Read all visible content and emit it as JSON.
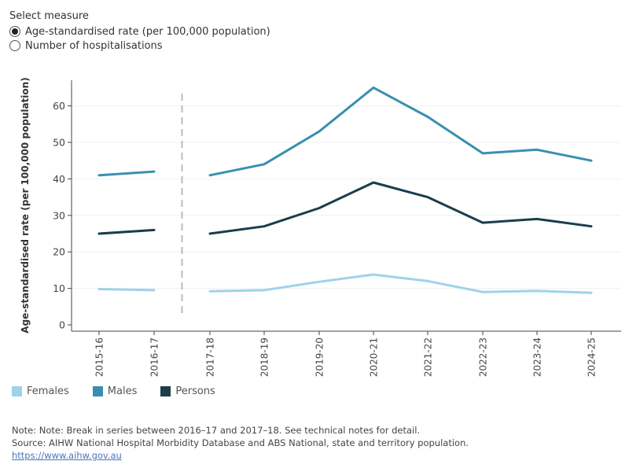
{
  "measure_selector": {
    "title": "Select measure",
    "options": [
      {
        "label": "Age-standardised rate (per 100,000 population)",
        "selected": true
      },
      {
        "label": "Number of hospitalisations",
        "selected": false
      }
    ]
  },
  "chart_data": {
    "type": "line",
    "title": "",
    "xlabel": "",
    "ylabel": "Age-standardised rate (per 100,000 population)",
    "categories": [
      "2015-16",
      "2016-17",
      "2017-18",
      "2018-19",
      "2019-20",
      "2020-21",
      "2021-22",
      "2022-23",
      "2023-24",
      "2024-25"
    ],
    "ylim": [
      0,
      65
    ],
    "yticks": [
      0,
      10,
      20,
      30,
      40,
      50,
      60
    ],
    "break_after_index": 1,
    "series": [
      {
        "name": "Females",
        "color": "#9fd2ea",
        "values": [
          9.8,
          9.5,
          9.2,
          9.5,
          11.8,
          13.8,
          12,
          9,
          9.3,
          8.8
        ]
      },
      {
        "name": "Males",
        "color": "#3a8fb0",
        "values": [
          41,
          42,
          41,
          44,
          53,
          65,
          57,
          47,
          48,
          45
        ]
      },
      {
        "name": "Persons",
        "color": "#1b3d4c",
        "values": [
          25,
          26,
          25,
          27,
          32,
          39,
          35,
          28,
          29,
          27
        ]
      }
    ],
    "legend_position": "bottom-left",
    "grid": true
  },
  "notes": {
    "note": "Note: Note: Break in series between 2016–17 and 2017–18. See technical notes for detail.",
    "source": "Source: AIHW National Hospital Morbidity Database and ABS National, state and territory population.",
    "link": "https://www.aihw.gov.au"
  }
}
